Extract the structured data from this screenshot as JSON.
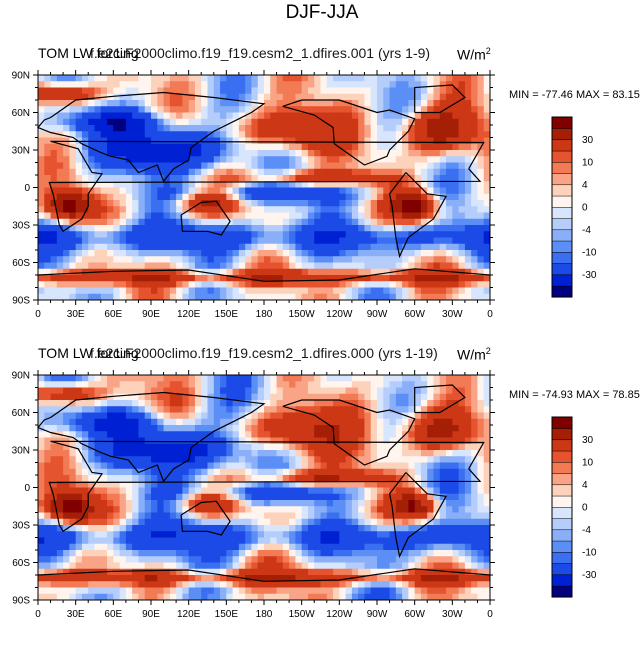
{
  "figure": {
    "title": "DJF-JJA",
    "colors": [
      "#01007f",
      "#0020d4",
      "#1c4ae6",
      "#3a6ff2",
      "#5c8ff6",
      "#8aaff9",
      "#b5cdfb",
      "#d8e6fd",
      "#fff4ee",
      "#fcd2bb",
      "#f9a486",
      "#f27a54",
      "#e5532f",
      "#cc3715",
      "#a51f06",
      "#800000"
    ],
    "colorbar_labels": [
      "30",
      "10",
      "4",
      "0",
      "-4",
      "-10",
      "-30"
    ]
  },
  "panels": [
    {
      "title_left": "TOM LW forcing",
      "title_center": "f.e21.F2000climo.f19_f19.cesm2_1.dfires.001 (yrs 1-9)",
      "units": "W/m",
      "units_exp": "2",
      "minmax": "MIN = -77.46 MAX =  83.15"
    },
    {
      "title_left": "TOM LW forcing",
      "title_center": "f.e21.F2000climo.f19_f19.cesm2_1.dfires.000 (yrs 1-19)",
      "units": "W/m",
      "units_exp": "2",
      "minmax": "MIN = -74.93 MAX =  78.85"
    }
  ],
  "chart_data": [
    {
      "type": "heatmap",
      "title": "TOM LW forcing — f.e21.F2000climo.f19_f19.cesm2_1.dfires.001 (yrs 1-9)",
      "x_ticks": [
        "0",
        "30E",
        "60E",
        "90E",
        "120E",
        "150E",
        "180",
        "150W",
        "120W",
        "90W",
        "60W",
        "30W",
        "0"
      ],
      "y_ticks": [
        "90N",
        "60N",
        "30N",
        "0",
        "30S",
        "60S",
        "90S"
      ],
      "xlim": [
        0,
        360
      ],
      "ylim": [
        -90,
        90
      ],
      "min": -77.46,
      "max": 83.15,
      "colorbar_levels": [
        -40,
        -30,
        -20,
        -10,
        -8,
        -6,
        -4,
        -2,
        0,
        2,
        4,
        6,
        8,
        10,
        20,
        30,
        40
      ],
      "units": "W/m^2"
    },
    {
      "type": "heatmap",
      "title": "TOM LW forcing — f.e21.F2000climo.f19_f19.cesm2_1.dfires.000 (yrs 1-19)",
      "x_ticks": [
        "0",
        "30E",
        "60E",
        "90E",
        "120E",
        "150E",
        "180",
        "150W",
        "120W",
        "90W",
        "60W",
        "30W",
        "0"
      ],
      "y_ticks": [
        "90N",
        "60N",
        "30N",
        "0",
        "30S",
        "60S",
        "90S"
      ],
      "xlim": [
        0,
        360
      ],
      "ylim": [
        -90,
        90
      ],
      "min": -74.93,
      "max": 78.85,
      "colorbar_levels": [
        -40,
        -30,
        -20,
        -10,
        -8,
        -6,
        -4,
        -2,
        0,
        2,
        4,
        6,
        8,
        10,
        20,
        30,
        40
      ],
      "units": "W/m^2"
    }
  ]
}
